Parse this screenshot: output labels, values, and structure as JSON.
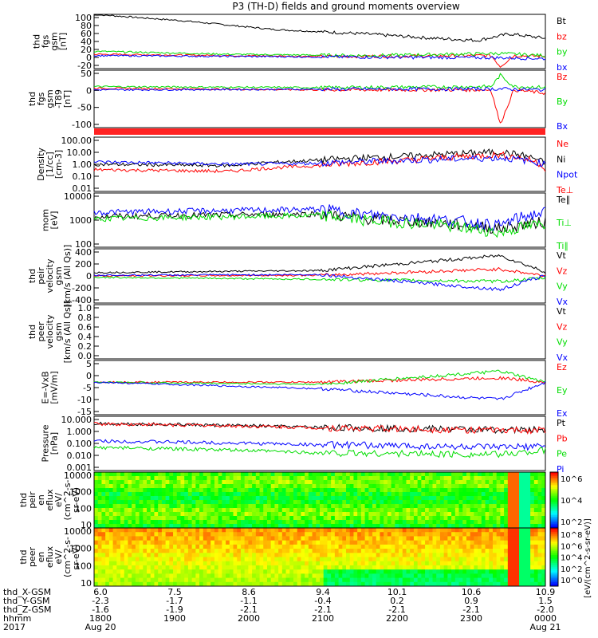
{
  "title": "P3 (TH-D) fields and ground moments overview",
  "colors": {
    "black": "#000000",
    "red": "#ff0000",
    "green": "#00dd00",
    "blue": "#0000ff"
  },
  "chart_data": [
    {
      "type": "line",
      "ylabel": [
        "thd",
        "fgs",
        "gsm",
        "[nT]"
      ],
      "yticks": [
        "100",
        "80",
        "60",
        "40",
        "20",
        "0",
        "-20"
      ],
      "ylim": [
        -25,
        100
      ],
      "legend": [
        {
          "label": "Bt",
          "color": "#000000"
        },
        {
          "label": "bz",
          "color": "#ff0000"
        },
        {
          "label": "by",
          "color": "#00dd00"
        },
        {
          "label": "bx",
          "color": "#0000ff"
        }
      ],
      "series": [
        {
          "name": "Bt",
          "color": "#000000",
          "points": [
            [
              0,
              100
            ],
            [
              0.2,
              85
            ],
            [
              0.4,
              65
            ],
            [
              0.6,
              55
            ],
            [
              0.75,
              45
            ],
            [
              0.85,
              40
            ],
            [
              0.92,
              55
            ],
            [
              1,
              45
            ]
          ]
        },
        {
          "name": "bz",
          "color": "#ff0000",
          "points": [
            [
              0,
              8
            ],
            [
              0.5,
              3
            ],
            [
              0.88,
              5
            ],
            [
              0.9,
              -20
            ],
            [
              0.93,
              5
            ],
            [
              1,
              3
            ]
          ]
        },
        {
          "name": "by",
          "color": "#00dd00",
          "points": [
            [
              0,
              15
            ],
            [
              0.3,
              8
            ],
            [
              0.6,
              5
            ],
            [
              0.9,
              10
            ],
            [
              1,
              5
            ]
          ]
        },
        {
          "name": "bx",
          "color": "#0000ff",
          "points": [
            [
              0,
              5
            ],
            [
              0.5,
              2
            ],
            [
              0.9,
              0
            ],
            [
              1,
              -2
            ]
          ]
        }
      ]
    },
    {
      "type": "line",
      "ylabel": [
        "thd",
        "fgs",
        "gsm",
        "-T89",
        "[nT]"
      ],
      "yticks": [
        "50",
        "0",
        "-50",
        "-100"
      ],
      "ylim": [
        -120,
        55
      ],
      "legend": [
        {
          "label": "Bz",
          "color": "#ff0000"
        },
        {
          "label": "By",
          "color": "#00dd00"
        },
        {
          "label": "Bx",
          "color": "#0000ff"
        }
      ],
      "series": [
        {
          "name": "Bz",
          "color": "#ff0000",
          "points": [
            [
              0,
              0
            ],
            [
              0.5,
              -5
            ],
            [
              0.88,
              -5
            ],
            [
              0.9,
              -110
            ],
            [
              0.93,
              -5
            ],
            [
              1,
              -15
            ]
          ]
        },
        {
          "name": "By",
          "color": "#00dd00",
          "points": [
            [
              0,
              5
            ],
            [
              0.5,
              2
            ],
            [
              0.88,
              5
            ],
            [
              0.9,
              40
            ],
            [
              0.93,
              5
            ],
            [
              1,
              3
            ]
          ]
        },
        {
          "name": "Bx",
          "color": "#0000ff",
          "points": [
            [
              0,
              -5
            ],
            [
              0.5,
              -3
            ],
            [
              0.9,
              -2
            ],
            [
              1,
              -5
            ]
          ]
        }
      ]
    },
    {
      "type": "line",
      "ylabel": [
        "Density",
        "[1/cc]",
        "[cm-3]"
      ],
      "yticks": [
        "100.00",
        "10.00",
        "1.00",
        "0.10",
        "0.01"
      ],
      "ylim": [
        0.01,
        100
      ],
      "log": true,
      "legend": [
        {
          "label": "Ne",
          "color": "#ff0000"
        },
        {
          "label": "Ni",
          "color": "#000000"
        },
        {
          "label": "Npot",
          "color": "#0000ff"
        },
        {
          "label": "Te⊥",
          "color": "#ff0000"
        }
      ],
      "series": [
        {
          "name": "Ni",
          "color": "#000000",
          "points": [
            [
              0,
              1
            ],
            [
              0.3,
              0.8
            ],
            [
              0.5,
              2
            ],
            [
              0.7,
              4
            ],
            [
              0.9,
              8
            ],
            [
              1,
              1
            ]
          ]
        },
        {
          "name": "Ne",
          "color": "#ff0000",
          "points": [
            [
              0,
              0.4
            ],
            [
              0.3,
              0.3
            ],
            [
              0.5,
              0.8
            ],
            [
              0.7,
              2
            ],
            [
              0.9,
              5
            ],
            [
              1,
              0.5
            ]
          ]
        },
        {
          "name": "Npot",
          "color": "#0000ff",
          "points": [
            [
              0,
              1.5
            ],
            [
              0.3,
              1
            ],
            [
              0.5,
              1.2
            ],
            [
              0.7,
              2
            ],
            [
              0.9,
              3
            ],
            [
              1,
              1
            ]
          ]
        }
      ]
    },
    {
      "type": "line",
      "ylabel": [
        "mom",
        "[eV]"
      ],
      "yticks": [
        "10000",
        "1000",
        "100"
      ],
      "ylim": [
        50,
        10000
      ],
      "log": true,
      "legend": [
        {
          "label": "Te∥",
          "color": "#000000"
        },
        {
          "label": "Ti⊥",
          "color": "#00dd00"
        },
        {
          "label": "Ti∥",
          "color": "#00dd00"
        }
      ],
      "series": [
        {
          "name": "Te∥",
          "color": "#000000",
          "points": [
            [
              0,
              1000
            ],
            [
              0.5,
              1300
            ],
            [
              0.6,
              800
            ],
            [
              0.9,
              300
            ],
            [
              1,
              600
            ]
          ]
        },
        {
          "name": "Ti⊥",
          "color": "#0000ff",
          "points": [
            [
              0,
              1500
            ],
            [
              0.5,
              2000
            ],
            [
              0.6,
              1200
            ],
            [
              0.9,
              400
            ],
            [
              1,
              1500
            ]
          ]
        },
        {
          "name": "Ti∥",
          "color": "#00dd00",
          "points": [
            [
              0,
              800
            ],
            [
              0.5,
              1100
            ],
            [
              0.6,
              700
            ],
            [
              0.9,
              200
            ],
            [
              1,
              500
            ]
          ]
        }
      ]
    },
    {
      "type": "line",
      "ylabel": [
        "thd",
        "peir",
        "velocity",
        "gsm",
        "[km/s (All Qs)]"
      ],
      "yticks": [
        "400",
        "200",
        "0",
        "-200",
        "-400"
      ],
      "ylim": [
        -400,
        400
      ],
      "legend": [
        {
          "label": "Vt",
          "color": "#000000"
        },
        {
          "label": "Vz",
          "color": "#ff0000"
        },
        {
          "label": "Vy",
          "color": "#00dd00"
        },
        {
          "label": "Vx",
          "color": "#0000ff"
        }
      ],
      "series": [
        {
          "name": "Vt",
          "color": "#000000",
          "points": [
            [
              0,
              50
            ],
            [
              0.5,
              80
            ],
            [
              0.9,
              300
            ],
            [
              1,
              60
            ]
          ]
        },
        {
          "name": "Vz",
          "color": "#ff0000",
          "points": [
            [
              0,
              0
            ],
            [
              0.5,
              10
            ],
            [
              0.9,
              100
            ],
            [
              1,
              0
            ]
          ]
        },
        {
          "name": "Vy",
          "color": "#00dd00",
          "points": [
            [
              0,
              -20
            ],
            [
              0.5,
              -50
            ],
            [
              0.9,
              -80
            ],
            [
              1,
              -30
            ]
          ]
        },
        {
          "name": "Vx",
          "color": "#0000ff",
          "points": [
            [
              0,
              10
            ],
            [
              0.5,
              20
            ],
            [
              0.9,
              -200
            ],
            [
              1,
              10
            ]
          ]
        }
      ]
    },
    {
      "type": "line",
      "ylabel": [
        "thd",
        "peer",
        "velocity",
        "gsm",
        "[km/s (All Qs)]"
      ],
      "yticks": [
        "1.0",
        "0.8",
        "0.6",
        "0.4",
        "0.2",
        "0.0"
      ],
      "ylim": [
        0,
        1
      ],
      "legend": [
        {
          "label": "Vt",
          "color": "#000000"
        },
        {
          "label": "Vz",
          "color": "#ff0000"
        },
        {
          "label": "Vy",
          "color": "#00dd00"
        },
        {
          "label": "Vx",
          "color": "#0000ff"
        }
      ],
      "series": []
    },
    {
      "type": "line",
      "ylabel": [
        "E=-VxB",
        "[mV/m]"
      ],
      "yticks": [
        "5",
        "0",
        "-5",
        "-10",
        "-15"
      ],
      "ylim": [
        -15,
        10
      ],
      "legend": [
        {
          "label": "Ez",
          "color": "#ff0000"
        },
        {
          "label": "Ey",
          "color": "#00dd00"
        },
        {
          "label": "Ex",
          "color": "#0000ff"
        }
      ],
      "series": [
        {
          "name": "Ez",
          "color": "#ff0000",
          "points": [
            [
              0,
              0
            ],
            [
              0.5,
              0
            ],
            [
              0.9,
              2
            ],
            [
              1,
              0
            ]
          ]
        },
        {
          "name": "Ey",
          "color": "#00dd00",
          "points": [
            [
              0,
              0
            ],
            [
              0.5,
              -1
            ],
            [
              0.9,
              5
            ],
            [
              1,
              0
            ]
          ]
        },
        {
          "name": "Ex",
          "color": "#0000ff",
          "points": [
            [
              0,
              0
            ],
            [
              0.5,
              -3
            ],
            [
              0.9,
              -8
            ],
            [
              1,
              0
            ]
          ]
        }
      ]
    },
    {
      "type": "line",
      "ylabel": [
        "Pressure",
        "[nPa]"
      ],
      "yticks": [
        "10.000",
        "1.000",
        "0.100",
        "0.010",
        "0.001"
      ],
      "ylim": [
        0.001,
        10
      ],
      "log": true,
      "legend": [
        {
          "label": "Pt",
          "color": "#000000"
        },
        {
          "label": "Pb",
          "color": "#ff0000"
        },
        {
          "label": "Pe",
          "color": "#00dd00"
        },
        {
          "label": "Pi",
          "color": "#0000ff"
        }
      ],
      "series": [
        {
          "name": "Pt",
          "color": "#000000",
          "points": [
            [
              0,
              3
            ],
            [
              0.5,
              1.5
            ],
            [
              0.9,
              1
            ],
            [
              1,
              1
            ]
          ]
        },
        {
          "name": "Pb",
          "color": "#ff0000",
          "points": [
            [
              0,
              2.8
            ],
            [
              0.5,
              1.4
            ],
            [
              0.9,
              0.9
            ],
            [
              1,
              0.95
            ]
          ]
        },
        {
          "name": "Pi",
          "color": "#0000ff",
          "points": [
            [
              0,
              0.15
            ],
            [
              0.5,
              0.08
            ],
            [
              0.9,
              0.05
            ],
            [
              1,
              0.06
            ]
          ]
        },
        {
          "name": "Pe",
          "color": "#00dd00",
          "points": [
            [
              0,
              0.05
            ],
            [
              0.5,
              0.02
            ],
            [
              0.9,
              0.015
            ],
            [
              1,
              0.03
            ]
          ]
        }
      ]
    },
    {
      "type": "heatmap",
      "ylabel": [
        "thd",
        "peir",
        "en",
        "eflux",
        "eV/",
        "(cm^2-s-",
        "sr-eV)"
      ],
      "yticks": [
        "10000",
        "1000",
        "100",
        "10"
      ],
      "ylim": [
        5,
        25000
      ],
      "log": true,
      "colorbar": {
        "ticks": [
          "10^6",
          "10^4",
          "10^2"
        ],
        "label": "[eV/(cm^2-s-sr-eV)]  (All Qs)"
      }
    },
    {
      "type": "heatmap",
      "ylabel": [
        "thd",
        "peer",
        "en",
        "eflux",
        "eV/",
        "(cm^2-s-",
        "sr-eV)"
      ],
      "yticks": [
        "10000",
        "1000",
        "100",
        "10"
      ],
      "ylim": [
        5,
        25000
      ],
      "log": true,
      "colorbar": {
        "ticks": [
          "10^8",
          "10^6",
          "10^4",
          "10^2",
          "10^0"
        ],
        "label": "[eV/(cm^2-s-sr-eV)]"
      }
    }
  ],
  "xaxis": {
    "rows": [
      {
        "label": "thd_X-GSM",
        "values": [
          "6.0",
          "7.5",
          "8.6",
          "9.4",
          "10.1",
          "10.6",
          "10.9"
        ]
      },
      {
        "label": "thd_Y-GSM",
        "values": [
          "-2.3",
          "-1.7",
          "-1.1",
          "-0.4",
          "0.2",
          "0.9",
          "1.5"
        ]
      },
      {
        "label": "thd_Z-GSM",
        "values": [
          "-1.6",
          "-1.9",
          "-2.1",
          "-2.1",
          "-2.1",
          "-2.1",
          "-2.0"
        ]
      },
      {
        "label": "hhmm",
        "values": [
          "1800",
          "1900",
          "2000",
          "2100",
          "2200",
          "2300",
          "0000"
        ]
      },
      {
        "label": "2017",
        "values": [
          "Aug 20",
          "",
          "",
          "",
          "",
          "",
          "Aug 21"
        ]
      }
    ]
  }
}
